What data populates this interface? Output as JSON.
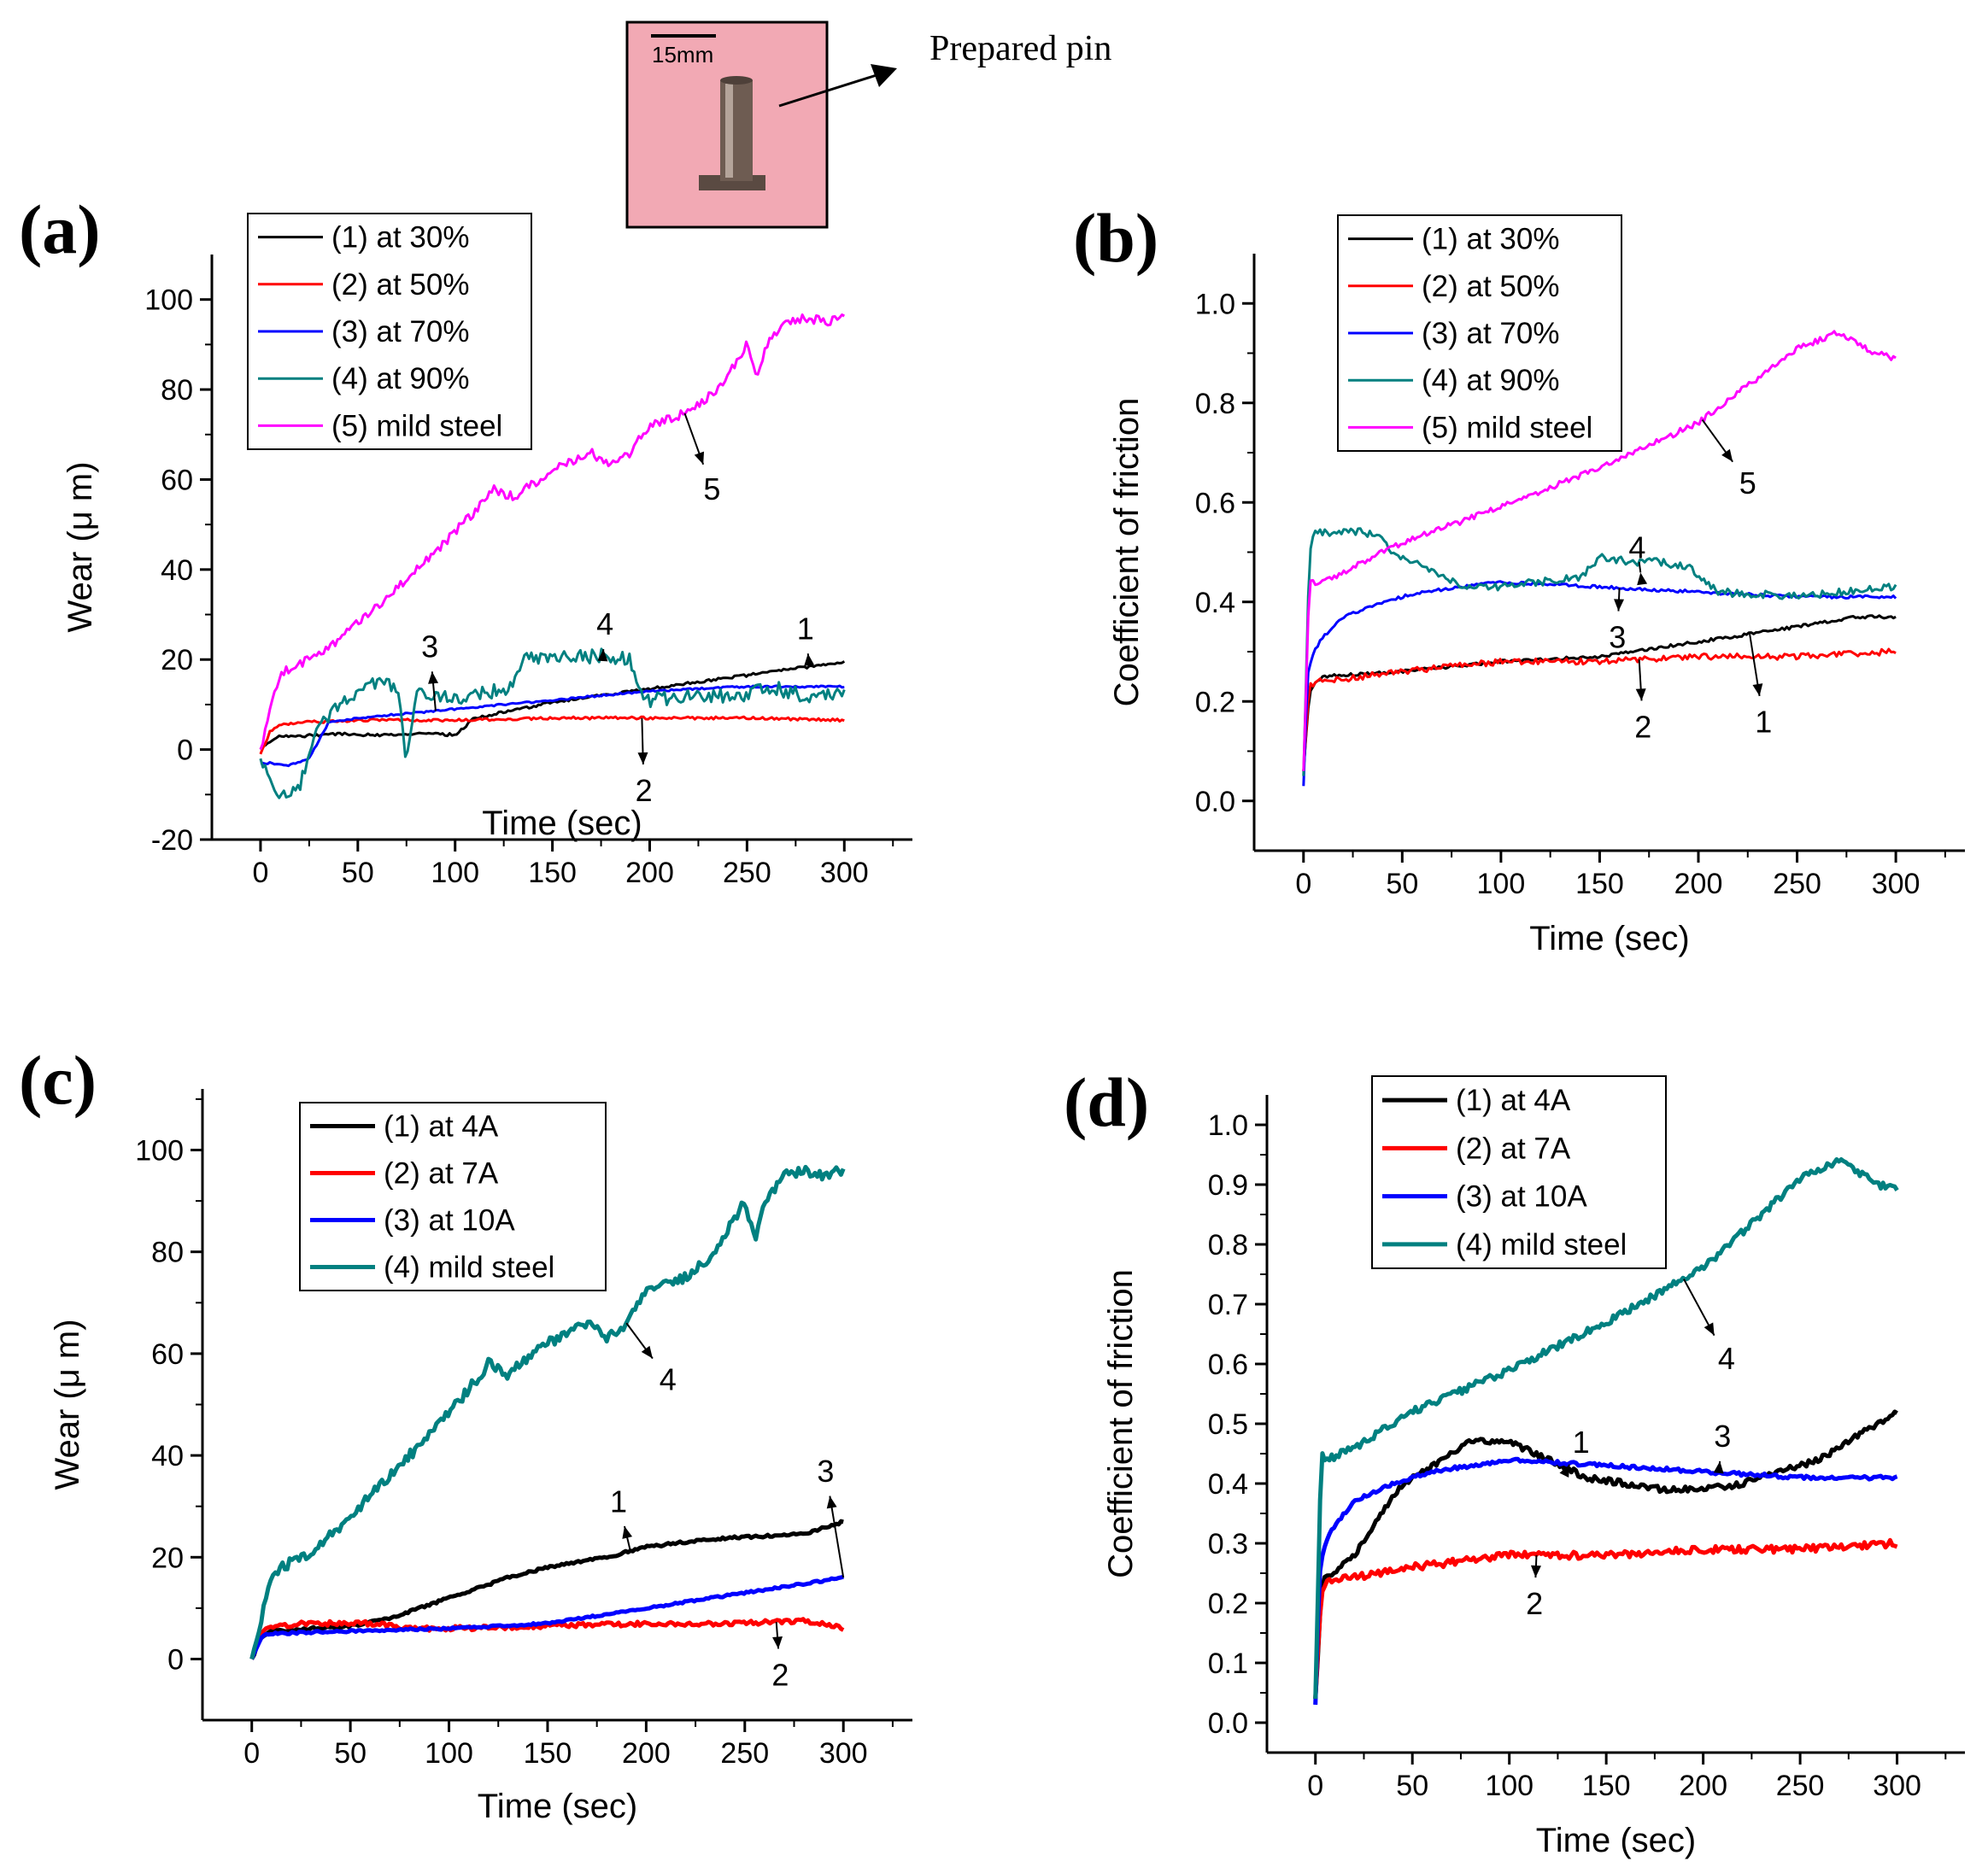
{
  "inset": {
    "scale_label": "15mm",
    "callout_label": "Prepared pin",
    "photo_background": "#f2a9b4"
  },
  "chart_data": [
    {
      "panel": "(a)",
      "type": "line",
      "xlabel": "Time (sec)",
      "ylabel": "Wear (μ m)",
      "xlim": [
        -25,
        335
      ],
      "ylim": [
        -20,
        110
      ],
      "xticks": [
        0,
        50,
        100,
        150,
        200,
        250,
        300
      ],
      "yticks": [
        -20,
        0,
        20,
        40,
        60,
        80,
        100
      ],
      "legend_position": "top-left",
      "series": [
        {
          "id": "1",
          "name": "(1) at 30%",
          "color": "#000000",
          "noise": 0.3,
          "x": [
            0,
            5,
            10,
            20,
            40,
            60,
            80,
            100,
            105,
            110,
            150,
            200,
            250,
            300
          ],
          "y": [
            0,
            2,
            3,
            3,
            3.5,
            3.2,
            3.5,
            3.3,
            5,
            7,
            10.5,
            13.5,
            16.5,
            19.5
          ]
        },
        {
          "id": "2",
          "name": "(2) at 50%",
          "color": "#ff0000",
          "noise": 0.3,
          "x": [
            0,
            5,
            10,
            20,
            50,
            100,
            150,
            200,
            250,
            300
          ],
          "y": [
            -1,
            4,
            5.5,
            6,
            6.5,
            6.5,
            7,
            7,
            7,
            6.5
          ]
        },
        {
          "id": "3",
          "name": "(3) at 70%",
          "color": "#0000ff",
          "noise": 0.2,
          "x": [
            0,
            5,
            15,
            25,
            35,
            50,
            100,
            150,
            200,
            250,
            300
          ],
          "y": [
            -3,
            -3,
            -3.5,
            -2,
            6,
            7,
            9,
            11,
            13,
            14,
            14
          ]
        },
        {
          "id": "4",
          "name": "(4) at 90%",
          "color": "#008080",
          "noise": 1.6,
          "x": [
            0,
            5,
            10,
            20,
            30,
            40,
            50,
            60,
            70,
            75,
            80,
            90,
            100,
            110,
            120,
            130,
            135,
            150,
            175,
            190,
            195,
            200,
            220,
            250,
            260,
            280,
            300
          ],
          "y": [
            -2,
            -8,
            -10,
            -8,
            5,
            10,
            12,
            15,
            14,
            -2,
            12,
            12,
            11,
            12,
            13,
            14,
            20,
            20,
            21,
            20,
            12,
            11,
            12,
            12,
            14,
            12,
            12
          ]
        },
        {
          "id": "5",
          "name": "(5) mild steel",
          "color": "#ff00ff",
          "noise": 1.0,
          "x": [
            0,
            10,
            20,
            30,
            50,
            70,
            90,
            110,
            120,
            130,
            150,
            170,
            180,
            190,
            200,
            220,
            235,
            250,
            255,
            260,
            270,
            280,
            290,
            300
          ],
          "y": [
            0,
            17,
            19,
            21,
            28,
            36,
            44,
            53,
            58,
            56,
            62,
            66,
            63,
            66,
            72,
            75,
            80,
            90,
            82,
            90,
            95,
            96,
            95,
            96
          ]
        }
      ],
      "annotations": [
        {
          "label": "1",
          "x": 280,
          "y": 27
        },
        {
          "label": "2",
          "x": 197,
          "y": -9
        },
        {
          "label": "3",
          "x": 87,
          "y": 23
        },
        {
          "label": "4",
          "x": 177,
          "y": 28
        },
        {
          "label": "5",
          "x": 232,
          "y": 58
        }
      ]
    },
    {
      "panel": "(b)",
      "type": "line",
      "xlabel": "Time (sec)",
      "ylabel": "Coefficient of friction",
      "xlim": [
        -25,
        335
      ],
      "ylim": [
        -0.1,
        1.1
      ],
      "xticks": [
        0,
        50,
        100,
        150,
        200,
        250,
        300
      ],
      "yticks": [
        0.0,
        0.2,
        0.4,
        0.6,
        0.8,
        1.0
      ],
      "tick_decimals": 1,
      "legend_position": "top-left",
      "series": [
        {
          "id": "1",
          "name": "(1) at 30%",
          "color": "#000000",
          "noise": 0.003,
          "x": [
            0,
            3,
            6,
            10,
            50,
            100,
            150,
            200,
            250,
            280,
            300
          ],
          "y": [
            0.06,
            0.22,
            0.24,
            0.25,
            0.26,
            0.28,
            0.29,
            0.32,
            0.35,
            0.37,
            0.37
          ]
        },
        {
          "id": "2",
          "name": "(2) at 50%",
          "color": "#ff0000",
          "noise": 0.006,
          "x": [
            0,
            3,
            6,
            10,
            50,
            100,
            150,
            200,
            250,
            300
          ],
          "y": [
            0.06,
            0.23,
            0.24,
            0.24,
            0.26,
            0.28,
            0.28,
            0.29,
            0.29,
            0.3
          ]
        },
        {
          "id": "3",
          "name": "(3) at 70%",
          "color": "#0000ff",
          "noise": 0.003,
          "x": [
            0,
            2,
            5,
            10,
            20,
            40,
            60,
            80,
            100,
            150,
            200,
            250,
            300
          ],
          "y": [
            0.03,
            0.25,
            0.3,
            0.33,
            0.37,
            0.4,
            0.42,
            0.43,
            0.44,
            0.43,
            0.42,
            0.41,
            0.41
          ]
        },
        {
          "id": "4",
          "name": "(4) at 90%",
          "color": "#008080",
          "noise": 0.008,
          "x": [
            0,
            3,
            6,
            15,
            30,
            40,
            45,
            60,
            80,
            100,
            120,
            140,
            150,
            165,
            180,
            195,
            210,
            250,
            300
          ],
          "y": [
            0.05,
            0.5,
            0.54,
            0.54,
            0.54,
            0.53,
            0.5,
            0.47,
            0.43,
            0.43,
            0.44,
            0.45,
            0.49,
            0.48,
            0.48,
            0.47,
            0.42,
            0.41,
            0.43
          ]
        },
        {
          "id": "5",
          "name": "(5) mild steel",
          "color": "#ff00ff",
          "noise": 0.006,
          "x": [
            0,
            3,
            6,
            20,
            50,
            100,
            150,
            200,
            250,
            270,
            290,
            300
          ],
          "y": [
            0.06,
            0.45,
            0.43,
            0.46,
            0.52,
            0.59,
            0.67,
            0.76,
            0.91,
            0.94,
            0.9,
            0.89
          ]
        }
      ],
      "annotations": [
        {
          "label": "1",
          "x": 233,
          "y": 0.16
        },
        {
          "label": "2",
          "x": 172,
          "y": 0.15
        },
        {
          "label": "3",
          "x": 159,
          "y": 0.33
        },
        {
          "label": "4",
          "x": 169,
          "y": 0.51
        },
        {
          "label": "5",
          "x": 225,
          "y": 0.64
        }
      ]
    },
    {
      "panel": "(c)",
      "type": "line",
      "xlabel": "Time (sec)",
      "ylabel": "Wear (μ m)",
      "xlim": [
        -25,
        335
      ],
      "ylim": [
        -12,
        112
      ],
      "xticks": [
        0,
        50,
        100,
        150,
        200,
        250,
        300
      ],
      "yticks": [
        0,
        20,
        40,
        60,
        80,
        100
      ],
      "legend_position": "top-left",
      "series": [
        {
          "id": "1",
          "name": "(1) at 4A",
          "color": "#000000",
          "noise": 0.25,
          "x": [
            0,
            5,
            10,
            30,
            50,
            70,
            100,
            130,
            150,
            180,
            200,
            230,
            250,
            280,
            300
          ],
          "y": [
            0,
            4.5,
            5.5,
            6,
            6.5,
            8,
            12,
            16,
            18,
            20,
            22,
            23.5,
            24,
            24.5,
            27
          ]
        },
        {
          "id": "2",
          "name": "(2) at 7A",
          "color": "#ff0000",
          "noise": 0.45,
          "x": [
            0,
            5,
            10,
            30,
            60,
            80,
            100,
            150,
            200,
            250,
            280,
            300
          ],
          "y": [
            0,
            5.5,
            6.5,
            7,
            7,
            6,
            6,
            6.5,
            7,
            7,
            7.5,
            6
          ]
        },
        {
          "id": "3",
          "name": "(3) at 10A",
          "color": "#0000ff",
          "noise": 0.2,
          "x": [
            0,
            5,
            10,
            50,
            100,
            150,
            200,
            250,
            300
          ],
          "y": [
            0,
            4.5,
            5,
            5.5,
            6,
            7,
            10,
            13,
            16
          ]
        },
        {
          "id": "4",
          "name": "(4) mild steel",
          "color": "#008080",
          "noise": 1.0,
          "x": [
            0,
            10,
            20,
            30,
            50,
            70,
            90,
            110,
            120,
            130,
            150,
            170,
            180,
            190,
            200,
            220,
            235,
            250,
            255,
            260,
            270,
            280,
            290,
            300
          ],
          "y": [
            0,
            17,
            19,
            21,
            28,
            36,
            44,
            53,
            58,
            56,
            62,
            66,
            63,
            66,
            72,
            75,
            80,
            90,
            82,
            90,
            95,
            96,
            95,
            96
          ]
        }
      ],
      "annotations": [
        {
          "label": "1",
          "x": 186,
          "y": 31
        },
        {
          "label": "2",
          "x": 268,
          "y": -3
        },
        {
          "label": "3",
          "x": 291,
          "y": 37
        },
        {
          "label": "4",
          "x": 211,
          "y": 55
        }
      ]
    },
    {
      "panel": "(d)",
      "type": "line",
      "xlabel": "Time (sec)",
      "ylabel": "Coefficient of friction",
      "xlim": [
        -25,
        335
      ],
      "ylim": [
        -0.05,
        1.05
      ],
      "xticks": [
        0,
        50,
        100,
        150,
        200,
        250,
        300
      ],
      "yticks": [
        0.0,
        0.1,
        0.2,
        0.3,
        0.4,
        0.5,
        0.6,
        0.7,
        0.8,
        0.9,
        1.0
      ],
      "tick_decimals": 1,
      "legend_position": "top-left",
      "series": [
        {
          "id": "1",
          "name": "(1) at 4A",
          "color": "#000000",
          "noise": 0.005,
          "x": [
            0,
            3,
            5,
            10,
            20,
            30,
            45,
            60,
            80,
            100,
            120,
            140,
            160,
            180,
            200,
            220,
            240,
            260,
            280,
            300
          ],
          "y": [
            0.04,
            0.22,
            0.25,
            0.25,
            0.28,
            0.33,
            0.4,
            0.43,
            0.47,
            0.47,
            0.44,
            0.41,
            0.4,
            0.39,
            0.39,
            0.4,
            0.42,
            0.44,
            0.48,
            0.52
          ]
        },
        {
          "id": "2",
          "name": "(2) at 7A",
          "color": "#ff0000",
          "noise": 0.006,
          "x": [
            0,
            3,
            6,
            15,
            50,
            100,
            150,
            200,
            250,
            300
          ],
          "y": [
            0.04,
            0.22,
            0.24,
            0.24,
            0.26,
            0.28,
            0.28,
            0.29,
            0.29,
            0.3
          ]
        },
        {
          "id": "3",
          "name": "(3) at 10A",
          "color": "#0000ff",
          "noise": 0.003,
          "x": [
            0,
            2,
            5,
            10,
            20,
            40,
            60,
            80,
            100,
            150,
            200,
            250,
            300
          ],
          "y": [
            0.03,
            0.25,
            0.3,
            0.33,
            0.37,
            0.4,
            0.42,
            0.43,
            0.44,
            0.43,
            0.42,
            0.41,
            0.41
          ]
        },
        {
          "id": "4",
          "name": "(4) mild steel",
          "color": "#008080",
          "noise": 0.006,
          "x": [
            0,
            3,
            6,
            20,
            50,
            100,
            150,
            200,
            250,
            270,
            290,
            300
          ],
          "y": [
            0.04,
            0.45,
            0.44,
            0.46,
            0.52,
            0.59,
            0.67,
            0.76,
            0.91,
            0.94,
            0.9,
            0.89
          ]
        }
      ],
      "annotations": [
        {
          "label": "1",
          "x": 137,
          "y": 0.47
        },
        {
          "label": "2",
          "x": 113,
          "y": 0.2
        },
        {
          "label": "3",
          "x": 210,
          "y": 0.48
        },
        {
          "label": "4",
          "x": 212,
          "y": 0.61
        }
      ]
    }
  ]
}
